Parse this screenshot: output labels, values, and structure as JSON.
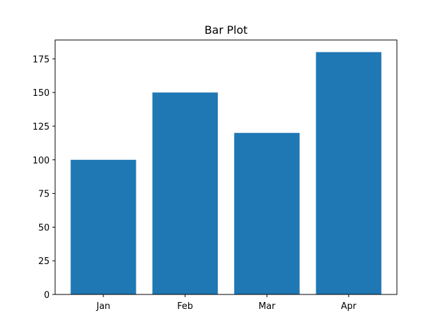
{
  "chart_data": {
    "type": "bar",
    "title": "Bar Plot",
    "xlabel": "",
    "ylabel": "",
    "categories": [
      "Jan",
      "Feb",
      "Mar",
      "Apr"
    ],
    "values": [
      100,
      150,
      120,
      180
    ],
    "ylim": [
      0,
      189
    ],
    "yticks": [
      0,
      25,
      50,
      75,
      100,
      125,
      150,
      175
    ],
    "grid": false,
    "bar_color": "#1f77b4"
  }
}
